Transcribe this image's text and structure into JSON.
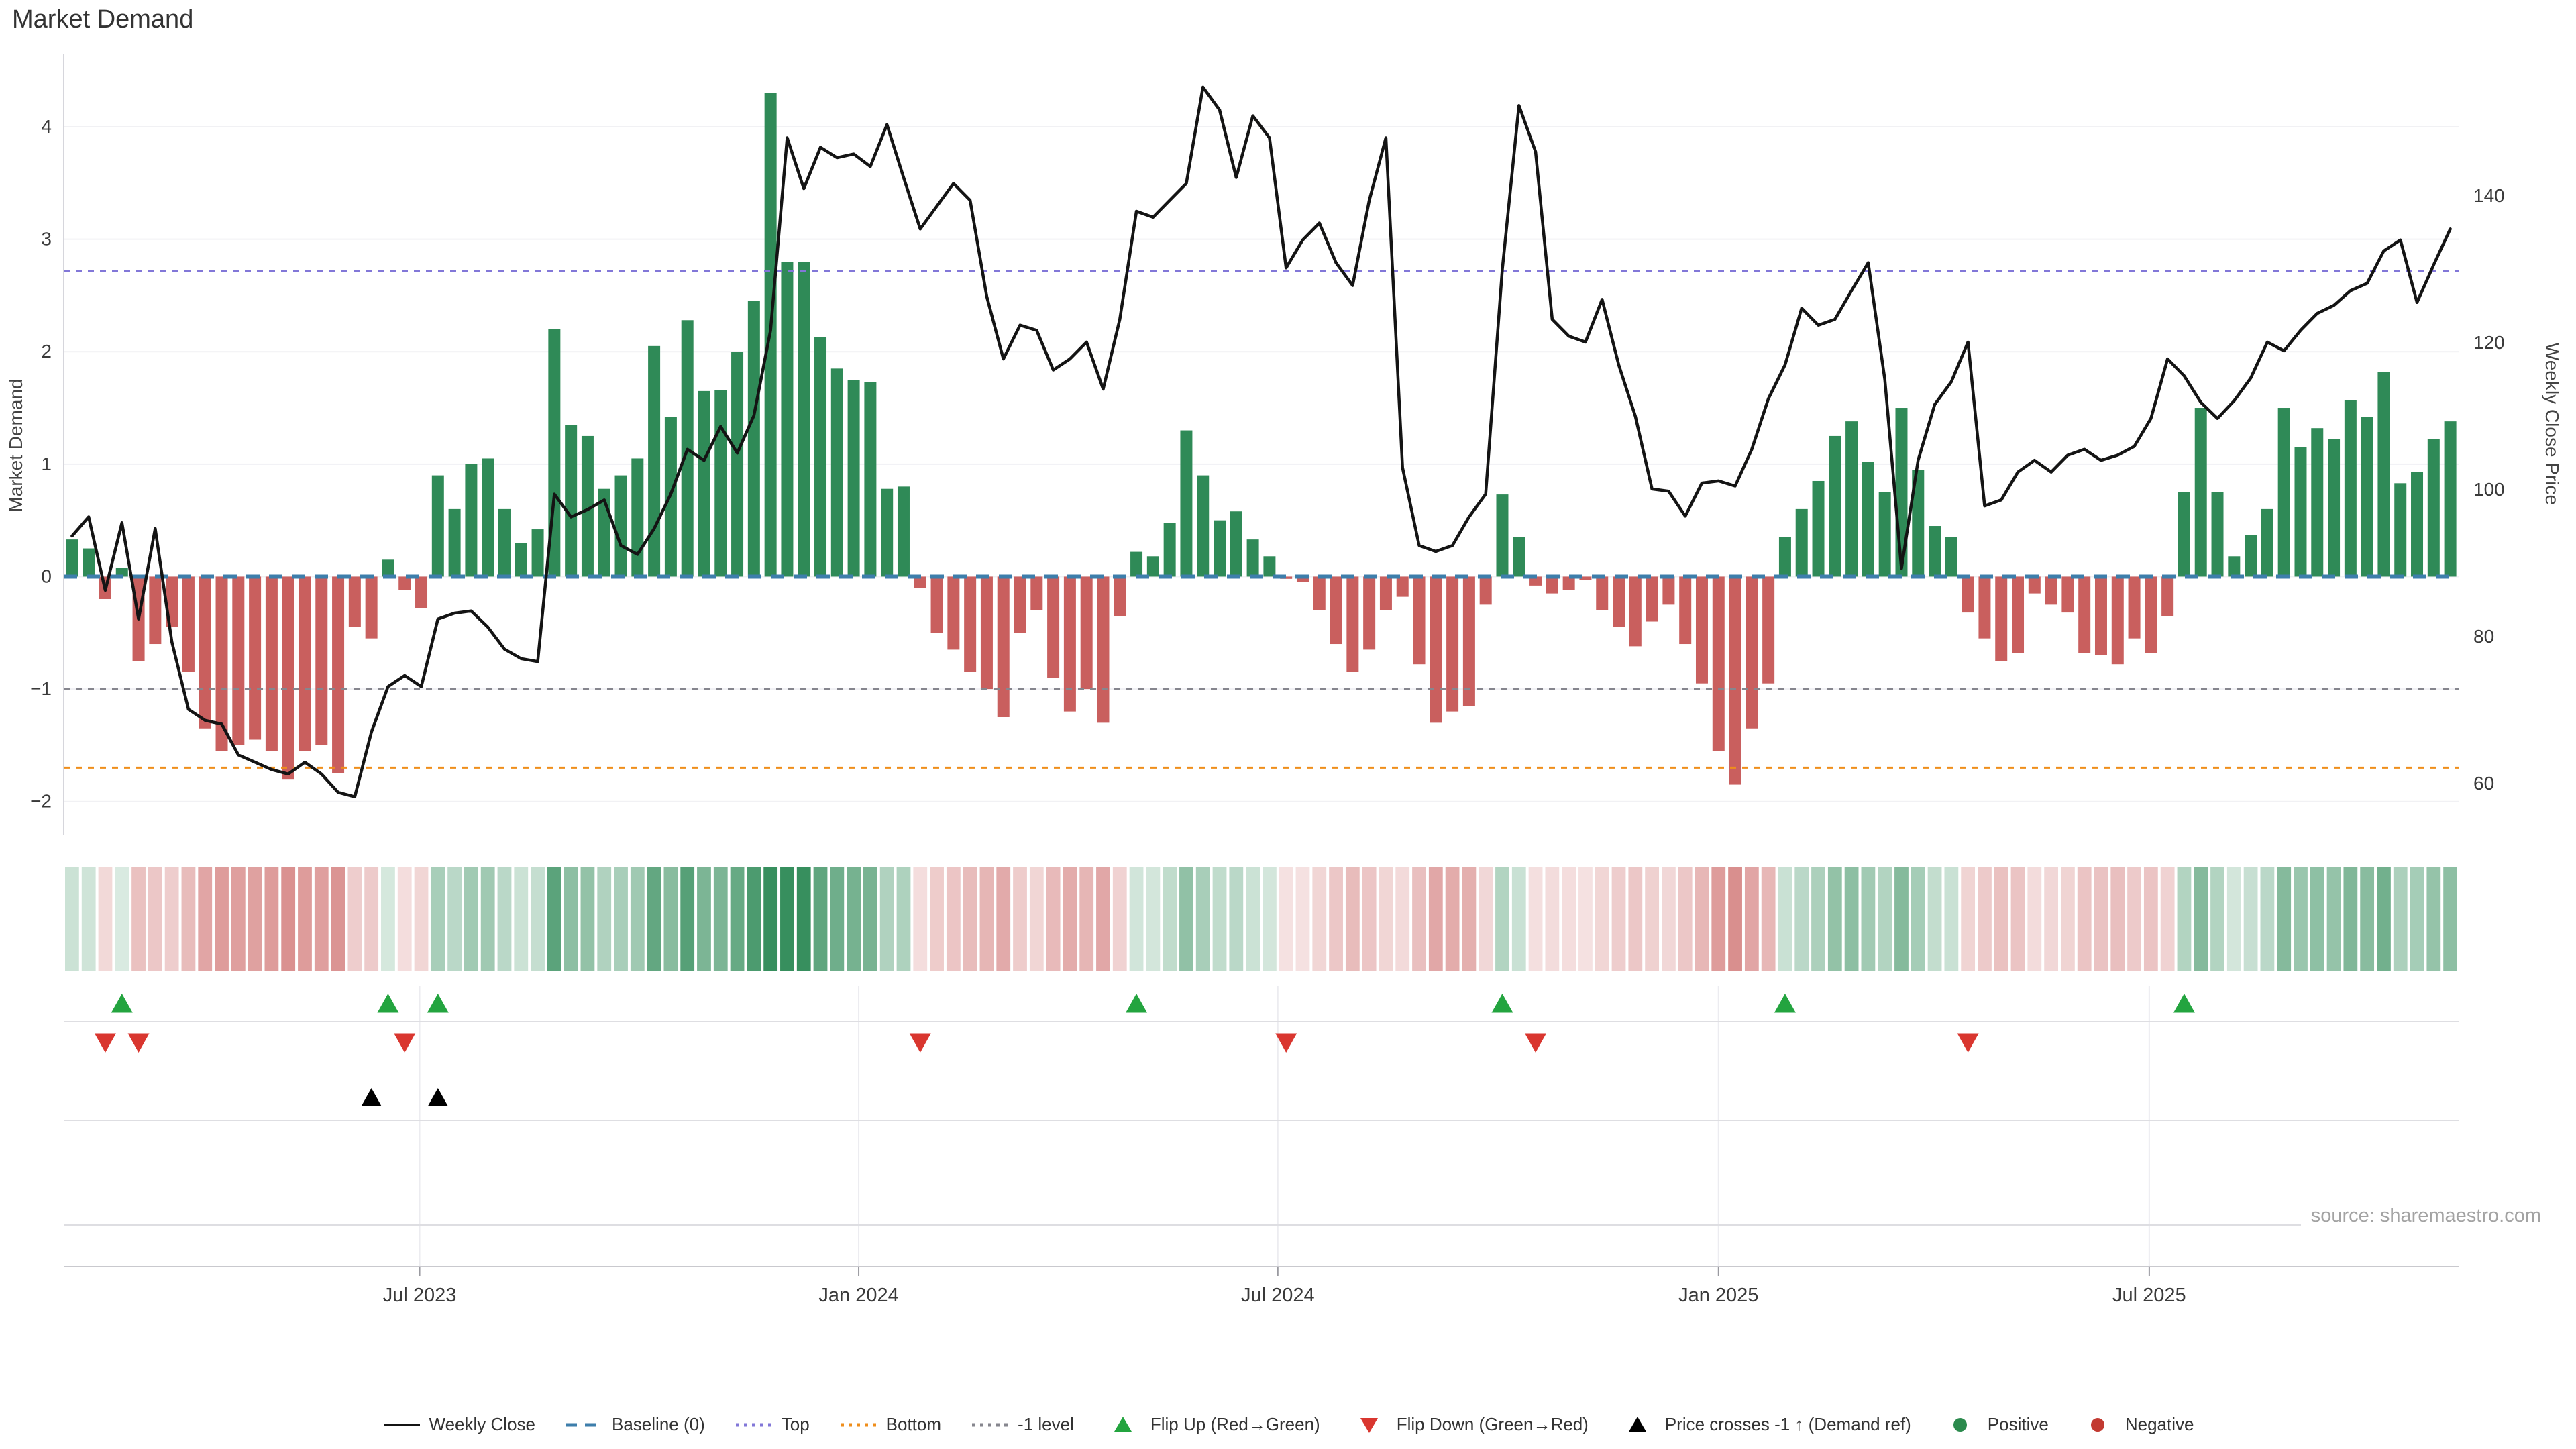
{
  "title": "Market Demand",
  "source": "source: sharemaestro.com",
  "axes": {
    "left": {
      "label": "Market Demand",
      "tick_labels": [
        "4",
        "3",
        "2",
        "1",
        "0",
        "−1",
        "−2"
      ],
      "tick_values": [
        4,
        3,
        2,
        1,
        0,
        -1,
        -2
      ]
    },
    "right": {
      "label": "Weekly Close Price",
      "tick_labels": [
        "140",
        "120",
        "100",
        "80",
        "60"
      ],
      "tick_values": [
        140,
        120,
        100,
        80,
        60
      ]
    },
    "x": {
      "ticks": [
        {
          "label": "Jul 2023",
          "week": 21.4
        },
        {
          "label": "Jan 2024",
          "week": 47.8
        },
        {
          "label": "Jul 2024",
          "week": 73.0
        },
        {
          "label": "Jan 2025",
          "week": 99.5
        },
        {
          "label": "Jul 2025",
          "week": 125.4
        }
      ]
    }
  },
  "chart_data": {
    "type": "combo",
    "x_unit": "week",
    "n_points": 144,
    "axis_ranges": {
      "left_demand": [
        -2.3,
        4.65
      ],
      "right_price": [
        53.0,
        159.4
      ]
    },
    "grid": "horizontal-light",
    "legend_position": "bottom-center",
    "series": [
      {
        "name": "Market Demand",
        "type": "bar",
        "axis": "left",
        "values": [
          0.33,
          0.25,
          -0.2,
          0.08,
          -0.75,
          -0.6,
          -0.45,
          -0.85,
          -1.35,
          -1.55,
          -1.5,
          -1.45,
          -1.55,
          -1.8,
          -1.55,
          -1.5,
          -1.75,
          -0.45,
          -0.55,
          0.15,
          -0.12,
          -0.28,
          0.9,
          0.6,
          1.0,
          1.05,
          0.6,
          0.3,
          0.42,
          2.2,
          1.35,
          1.25,
          0.78,
          0.9,
          1.05,
          2.05,
          1.42,
          2.28,
          1.65,
          1.66,
          2.0,
          2.45,
          4.3,
          2.8,
          2.8,
          2.13,
          1.85,
          1.75,
          1.73,
          0.78,
          0.8,
          -0.1,
          -0.5,
          -0.65,
          -0.85,
          -1.0,
          -1.25,
          -0.5,
          -0.3,
          -0.9,
          -1.2,
          -1.0,
          -1.3,
          -0.35,
          0.22,
          0.18,
          0.48,
          1.3,
          0.9,
          0.5,
          0.58,
          0.33,
          0.18,
          -0.02,
          -0.05,
          -0.3,
          -0.6,
          -0.85,
          -0.65,
          -0.3,
          -0.18,
          -0.78,
          -1.3,
          -1.2,
          -1.15,
          -0.25,
          0.73,
          0.35,
          -0.08,
          -0.15,
          -0.12,
          -0.03,
          -0.3,
          -0.45,
          -0.62,
          -0.4,
          -0.25,
          -0.6,
          -0.95,
          -1.55,
          -1.85,
          -1.35,
          -0.95,
          0.35,
          0.6,
          0.85,
          1.25,
          1.38,
          1.02,
          0.75,
          1.5,
          0.95,
          0.45,
          0.35,
          -0.32,
          -0.55,
          -0.75,
          -0.68,
          -0.15,
          -0.25,
          -0.32,
          -0.68,
          -0.7,
          -0.78,
          -0.55,
          -0.68,
          -0.35,
          0.75,
          1.5,
          0.75,
          0.18,
          0.37,
          0.6,
          1.5,
          1.15,
          1.32,
          1.22,
          1.57,
          1.42,
          1.82,
          0.83,
          0.93,
          1.22,
          1.38
        ]
      },
      {
        "name": "Weekly Close",
        "type": "line",
        "axis": "right",
        "values": [
          93.7,
          96.3,
          86.3,
          95.5,
          82.4,
          94.7,
          79.3,
          70.1,
          68.6,
          68.1,
          63.9,
          62.9,
          61.9,
          61.3,
          62.9,
          61.3,
          58.8,
          58.2,
          67.0,
          73.2,
          74.7,
          73.2,
          82.4,
          83.2,
          83.5,
          81.3,
          78.3,
          77.0,
          76.6,
          99.4,
          96.3,
          97.3,
          98.6,
          92.4,
          91.2,
          94.7,
          99.4,
          105.5,
          104.0,
          108.6,
          105.0,
          110.1,
          121.7,
          147.9,
          141.0,
          146.6,
          145.2,
          145.7,
          144.0,
          149.7,
          142.5,
          135.5,
          138.6,
          141.7,
          139.4,
          126.3,
          117.8,
          122.4,
          121.7,
          116.3,
          117.8,
          120.1,
          113.7,
          123.2,
          137.9,
          137.1,
          139.4,
          141.7,
          154.8,
          151.7,
          142.5,
          150.9,
          147.9,
          130.2,
          134.0,
          136.3,
          130.9,
          127.8,
          139.4,
          147.9,
          103.0,
          92.4,
          91.6,
          92.4,
          96.3,
          99.4,
          130.0,
          152.3,
          146.0,
          123.2,
          120.9,
          120.1,
          125.9,
          117.0,
          110.0,
          100.1,
          99.8,
          96.4,
          100.9,
          101.2,
          100.5,
          105.5,
          112.4,
          117.0,
          124.7,
          122.4,
          123.2,
          127.1,
          130.9,
          115.0,
          89.3,
          104.0,
          111.6,
          114.7,
          120.1,
          97.8,
          98.6,
          102.4,
          104.0,
          102.4,
          104.7,
          105.5,
          104.0,
          104.7,
          105.9,
          109.7,
          117.8,
          115.5,
          111.9,
          109.7,
          112.1,
          115.2,
          120.1,
          118.9,
          121.7,
          124.0,
          125.1,
          127.1,
          128.1,
          132.5,
          134.0,
          125.5,
          130.6,
          135.5
        ]
      }
    ],
    "reference_lines": [
      {
        "name": "Baseline (0)",
        "axis": "left",
        "value": 0,
        "color": "#3d7eab",
        "style": "dashed"
      },
      {
        "name": "Top",
        "axis": "left",
        "value": 2.72,
        "color": "#8277d8",
        "style": "dotted"
      },
      {
        "name": "Bottom",
        "axis": "left",
        "value": -1.7,
        "color": "#ef8e1b",
        "style": "dotted"
      },
      {
        "name": "-1 level",
        "axis": "left",
        "value": -1.0,
        "color": "#86868e",
        "style": "dotted"
      }
    ],
    "markers": {
      "flip_up_weeks": [
        3,
        19,
        22,
        64,
        86,
        103,
        127
      ],
      "flip_down_weeks": [
        2,
        4,
        20,
        51,
        73,
        88,
        114
      ],
      "price_cross_weeks": [
        18,
        22
      ]
    },
    "heatmap_strip": {
      "source_series": "Market Demand",
      "positive_color": "#2f8a57",
      "negative_color": "#c95f5e"
    }
  },
  "colors": {
    "bar_positive": "#2f8a57",
    "bar_negative": "#c95f5e",
    "price_line": "#141414",
    "baseline": "#3d7eab",
    "top_line": "#8277d8",
    "bottom_line": "#ef8e1b",
    "minus1_line": "#86868e",
    "flip_up_marker": "#23a43f",
    "flip_down_marker": "#d9362f",
    "price_cross_marker": "#000000",
    "grid": "#f1f1f4",
    "spine": "#d6d6dc",
    "panel_line": "#dedee2",
    "tick_text": "#3a3a3a"
  },
  "legend": {
    "items": [
      {
        "label": "Weekly Close",
        "swatch": "line",
        "color": "#141414"
      },
      {
        "label": "Baseline (0)",
        "swatch": "dash",
        "color": "#3d7eab"
      },
      {
        "label": "Top",
        "swatch": "dot",
        "color": "#8277d8"
      },
      {
        "label": "Bottom",
        "swatch": "dot",
        "color": "#ef8e1b"
      },
      {
        "label": "-1 level",
        "swatch": "dot",
        "color": "#86868e"
      },
      {
        "label": "Flip Up (Red→Green)",
        "swatch": "triangle-up",
        "color": "#23a43f"
      },
      {
        "label": "Flip Down (Green→Red)",
        "swatch": "triangle-down",
        "color": "#d9362f"
      },
      {
        "label": "Price crosses -1 ↑ (Demand ref)",
        "swatch": "triangle-up",
        "color": "#000000"
      },
      {
        "label": "Positive",
        "swatch": "circle",
        "color": "#2b8a4d"
      },
      {
        "label": "Negative",
        "swatch": "circle",
        "color": "#c23a31"
      }
    ]
  }
}
